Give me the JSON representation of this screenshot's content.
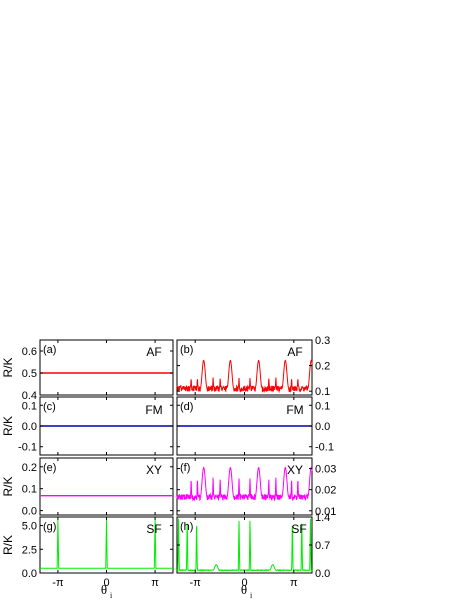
{
  "chart_data": [
    {
      "id": "a",
      "type": "line",
      "panel_label": "(a)",
      "tag": "AF",
      "ylabel": "R/K",
      "ylim": [
        0.4,
        0.65
      ],
      "yticks": [
        0.4,
        0.5,
        0.6
      ],
      "ytick_labels": [
        "0.4",
        "0.5",
        "0.6"
      ],
      "ytick_side": "left",
      "xlim": [
        -4.3,
        4.3
      ],
      "xticks": [
        -3.1416,
        0,
        3.1416
      ],
      "xtick_labels": [
        "",
        "",
        ""
      ],
      "color": "#ff0000",
      "series": [
        {
          "shape": "constant",
          "value": 0.5
        }
      ]
    },
    {
      "id": "b",
      "type": "line",
      "panel_label": "(b)",
      "tag": "AF",
      "ylim": [
        0.085,
        0.3
      ],
      "yticks": [
        0.1,
        0.2,
        0.3
      ],
      "ytick_labels": [
        "0.1",
        "0.2",
        "0.3"
      ],
      "ytick_side": "right",
      "xlim": [
        -4.3,
        4.3
      ],
      "xticks": [
        -3.1416,
        0,
        3.1416
      ],
      "xtick_labels": [
        "",
        "",
        ""
      ],
      "color": "#ff0000",
      "series": [
        {
          "shape": "oscillating",
          "base": 0.11,
          "noise": 0.012,
          "peak_x": [
            -2.6,
            -0.9,
            0.9,
            2.6,
            4.25
          ],
          "peak_height": 0.22,
          "peak_width": 0.22,
          "spike_x": [
            -3.4,
            -2.0,
            -1.55,
            -0.35,
            0.35,
            1.55,
            2.0,
            3.4,
            -3.0,
            3.0
          ],
          "spike_height": 0.155
        }
      ]
    },
    {
      "id": "c",
      "type": "line",
      "panel_label": "(c)",
      "tag": "FM",
      "ylabel": "R/K",
      "ylim": [
        -0.14,
        0.14
      ],
      "yticks": [
        -0.1,
        0.0,
        0.1
      ],
      "ytick_labels": [
        "-0.1",
        "0.0",
        "0.1"
      ],
      "ytick_side": "left",
      "xlim": [
        -4.3,
        4.3
      ],
      "xticks": [
        -3.1416,
        0,
        3.1416
      ],
      "xtick_labels": [
        "",
        "",
        ""
      ],
      "color": "#0000b0",
      "series": [
        {
          "shape": "constant",
          "value": 0.0
        }
      ]
    },
    {
      "id": "d",
      "type": "line",
      "panel_label": "(d)",
      "tag": "FM",
      "ylim": [
        -0.14,
        0.14
      ],
      "yticks": [
        -0.1,
        0.0,
        0.1
      ],
      "ytick_labels": [
        "-0.1",
        "0.0",
        "0.1"
      ],
      "ytick_side": "right",
      "xlim": [
        -4.3,
        4.3
      ],
      "xticks": [
        -3.1416,
        0,
        3.1416
      ],
      "xtick_labels": [
        "",
        "",
        ""
      ],
      "color": "#0000b0",
      "series": [
        {
          "shape": "constant",
          "value": 0.0
        }
      ]
    },
    {
      "id": "e",
      "type": "line",
      "panel_label": "(e)",
      "tag": "XY",
      "ylabel": "R/K",
      "ylim": [
        -0.02,
        0.24
      ],
      "yticks": [
        0.0,
        0.1,
        0.2
      ],
      "ytick_labels": [
        "0.0",
        "0.1",
        "0.2"
      ],
      "ytick_side": "left",
      "xlim": [
        -4.3,
        4.3
      ],
      "xticks": [
        -3.1416,
        0,
        3.1416
      ],
      "xtick_labels": [
        "",
        "",
        ""
      ],
      "color": "#ff00ff",
      "series": [
        {
          "shape": "constant",
          "value": 0.068
        }
      ]
    },
    {
      "id": "f",
      "type": "line",
      "panel_label": "(f)",
      "tag": "XY",
      "ylim": [
        0.008,
        0.035
      ],
      "yticks": [
        0.01,
        0.02,
        0.03
      ],
      "ytick_labels": [
        "0.01",
        "0.02",
        "0.03"
      ],
      "ytick_side": "right",
      "xlim": [
        -4.3,
        4.3
      ],
      "xticks": [
        -3.1416,
        0,
        3.1416
      ],
      "xtick_labels": [
        "",
        "",
        ""
      ],
      "color": "#ff00ff",
      "series": [
        {
          "shape": "oscillating",
          "base": 0.0165,
          "noise": 0.0014,
          "peak_x": [
            -2.6,
            -0.9,
            0.9,
            2.6,
            4.25
          ],
          "peak_height": 0.0305,
          "peak_width": 0.22,
          "spike_x": [
            -3.4,
            -2.0,
            -1.55,
            -0.35,
            0.35,
            1.55,
            2.0,
            3.4,
            -3.0,
            3.0
          ],
          "spike_height": 0.026
        }
      ]
    },
    {
      "id": "g",
      "type": "line",
      "panel_label": "(g)",
      "tag": "SF",
      "ylabel": "R/K",
      "ylim": [
        0,
        5.9
      ],
      "yticks": [
        0.0,
        2.5,
        5.0
      ],
      "ytick_labels": [
        "0.0",
        "2.5",
        "5.0"
      ],
      "ytick_side": "left",
      "xlim": [
        -4.3,
        4.3
      ],
      "xticks": [
        -3.1416,
        0,
        3.1416
      ],
      "xtick_labels": [
        "-π",
        "0",
        "π"
      ],
      "xlabel": "θ",
      "xlabel_sub": "i",
      "color": "#00ee00",
      "series": [
        {
          "shape": "spikes",
          "base": 0.5,
          "spike_x": [
            -3.1416,
            0,
            3.1416
          ],
          "spike_height": 5.7,
          "spike_width": 0.05
        }
      ]
    },
    {
      "id": "h",
      "type": "line",
      "panel_label": "(h)",
      "tag": "SF",
      "ylim": [
        0,
        1.4
      ],
      "yticks": [
        0.0,
        0.7,
        1.4
      ],
      "ytick_labels": [
        "0.0",
        "0.7",
        "1.4"
      ],
      "ytick_side": "right",
      "xlim": [
        -4.3,
        4.3
      ],
      "xticks": [
        -3.1416,
        0,
        3.1416
      ],
      "xtick_labels": [
        "-π",
        "0",
        "π"
      ],
      "xlabel": "θ",
      "xlabel_sub": "i",
      "color": "#00ee00",
      "series": [
        {
          "shape": "spikes",
          "base": 0.07,
          "noise": 0.008,
          "spike_x": [
            -4.2,
            -3.65,
            -3.05,
            -0.35,
            0.35,
            3.05,
            3.65,
            4.2
          ],
          "spike_height": 1.38,
          "spike_width": 0.045,
          "bump_x": [
            -1.8,
            1.8
          ],
          "bump_height": 0.21,
          "bump_width": 0.2
        }
      ]
    }
  ]
}
